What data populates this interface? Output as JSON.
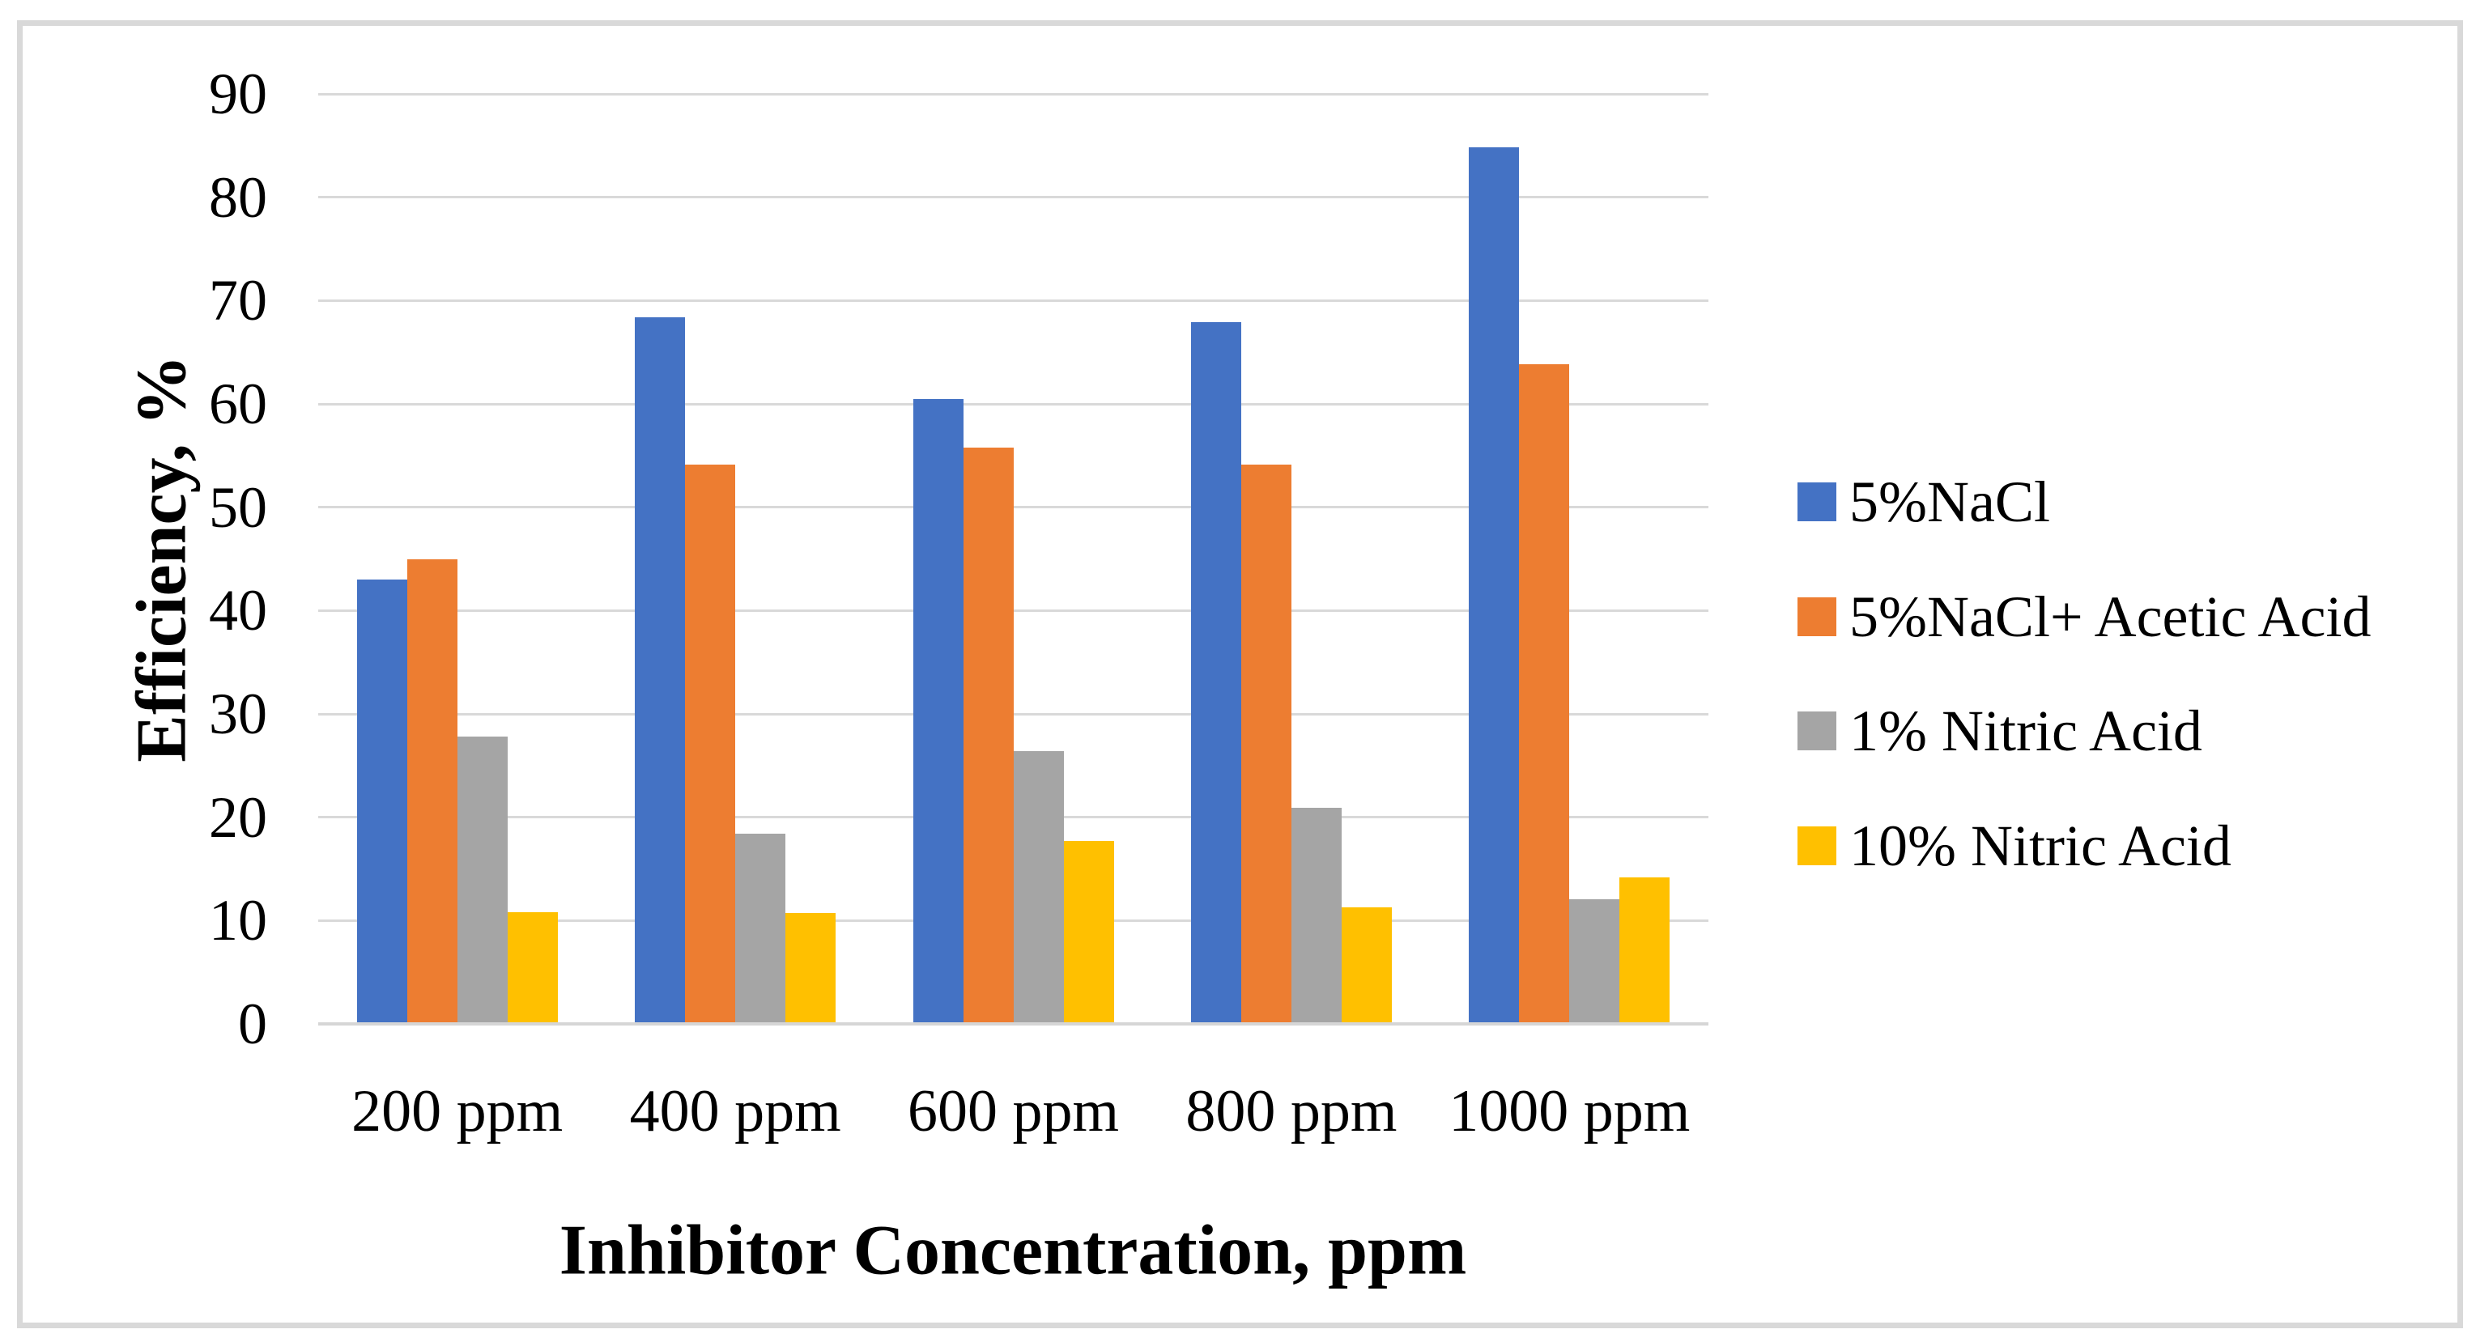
{
  "figure": {
    "description": "Grouped column chart of corrosion inhibitor efficiency versus inhibitor concentration in four media"
  },
  "chart_data": {
    "type": "bar",
    "title": "",
    "xlabel": "Inhibitor Concentration, ppm",
    "ylabel": "Efficiency, %",
    "categories": [
      "200 ppm",
      "400 ppm",
      "600 ppm",
      "800 ppm",
      "1000 ppm"
    ],
    "series": [
      {
        "name": "5%NaCl",
        "color": "#4472C4",
        "values": [
          43.0,
          68.4,
          60.5,
          67.9,
          84.8
        ]
      },
      {
        "name": "5%NaCl+ Acetic Acid",
        "color": "#ED7D31",
        "values": [
          45.0,
          54.1,
          55.8,
          54.1,
          63.8
        ]
      },
      {
        "name": "1% Nitric Acid",
        "color": "#A5A5A5",
        "values": [
          27.8,
          18.4,
          26.4,
          20.9,
          12.1
        ]
      },
      {
        "name": "10% Nitric Acid",
        "color": "#FFC000",
        "values": [
          10.8,
          10.7,
          17.7,
          11.3,
          14.2
        ]
      }
    ],
    "ylim": [
      0,
      90
    ],
    "ytick_step": 10,
    "grid": true,
    "legend_position": "right"
  },
  "colors": {
    "background": "#FFFFFF",
    "gridline": "#D9D9D9",
    "axis_line": "#D6D6D6",
    "figure_border": "#D9D9D9",
    "text": "#000000"
  }
}
